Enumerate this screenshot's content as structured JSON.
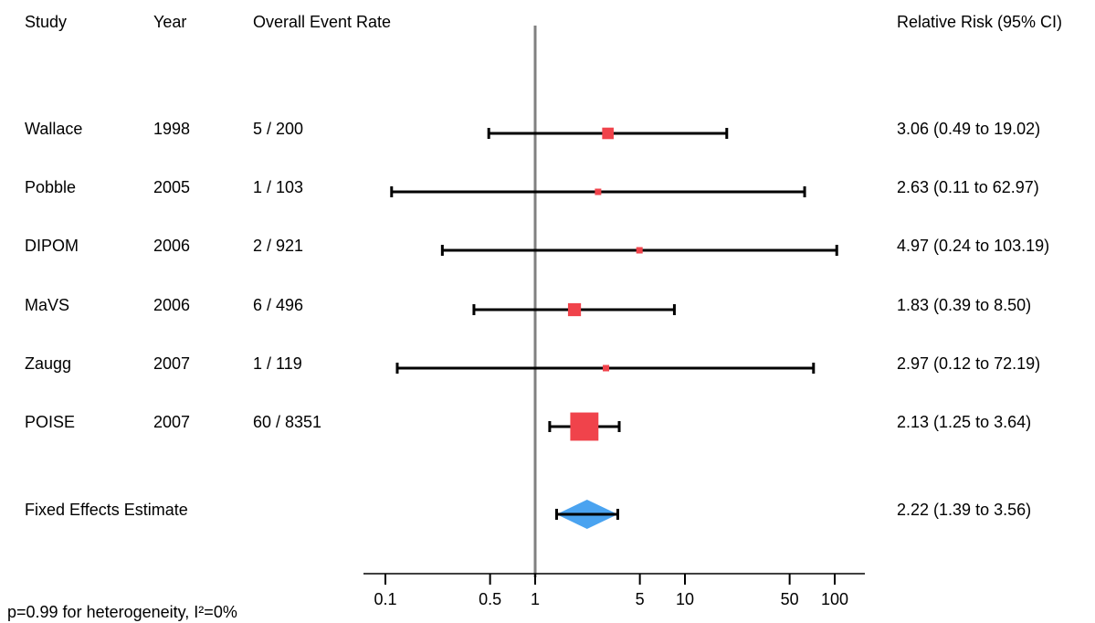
{
  "headers": {
    "study": "Study",
    "year": "Year",
    "rate": "Overall Event Rate",
    "rr": "Relative Risk (95% CI)"
  },
  "footer": "p=0.99 for heterogeneity, I²=0%",
  "chart_data": {
    "type": "forest",
    "x_scale": "log",
    "xlim": [
      0.06,
      170
    ],
    "x_ticks": [
      0.1,
      0.5,
      1,
      5,
      10,
      50,
      100
    ],
    "x_tick_labels": [
      "0.1",
      "0.5",
      "1",
      "5",
      "10",
      "50",
      "100"
    ],
    "reference_line": 1,
    "colors": {
      "study_marker": "#f0434b",
      "summary_diamond": "#4aa3f0",
      "ci_line": "#000000",
      "ref_line": "#808080"
    },
    "studies": [
      {
        "study": "Wallace",
        "year": "1998",
        "events": "5 / 200",
        "rr": 3.06,
        "lo": 0.49,
        "hi": 19.02,
        "weight": 0.11,
        "label": "3.06 (0.49 to 19.02)"
      },
      {
        "study": "Pobble",
        "year": "2005",
        "events": "1 / 103",
        "rr": 2.63,
        "lo": 0.11,
        "hi": 62.97,
        "weight": 0.03,
        "label": "2.63 (0.11 to 62.97)"
      },
      {
        "study": "DIPOM",
        "year": "2006",
        "events": "2 / 921",
        "rr": 4.97,
        "lo": 0.24,
        "hi": 103.19,
        "weight": 0.03,
        "label": "4.97 (0.24 to 103.19)"
      },
      {
        "study": "MaVS",
        "year": "2006",
        "events": "6 / 496",
        "rr": 1.83,
        "lo": 0.39,
        "hi": 8.5,
        "weight": 0.14,
        "label": "1.83 (0.39 to 8.50)"
      },
      {
        "study": "Zaugg",
        "year": "2007",
        "events": "1 / 119",
        "rr": 2.97,
        "lo": 0.12,
        "hi": 72.19,
        "weight": 0.03,
        "label": "2.97 (0.12 to 72.19)"
      },
      {
        "study": "POISE",
        "year": "2007",
        "events": "60 / 8351",
        "rr": 2.13,
        "lo": 1.25,
        "hi": 3.64,
        "weight": 0.66,
        "label": "2.13 (1.25 to 3.64)"
      }
    ],
    "summary": {
      "label_name": "Fixed Effects Estimate",
      "rr": 2.22,
      "lo": 1.39,
      "hi": 3.56,
      "label": "2.22 (1.39 to 3.56)"
    }
  }
}
